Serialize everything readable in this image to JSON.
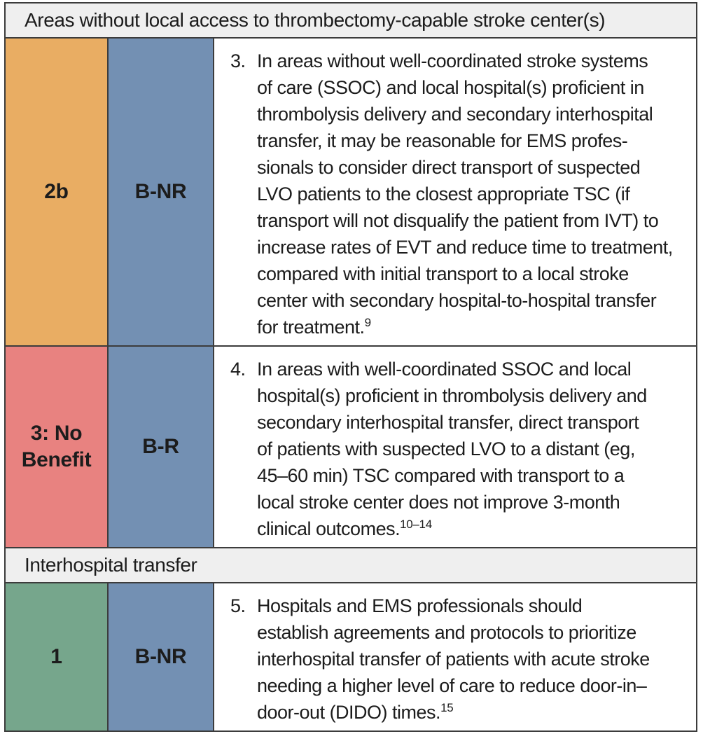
{
  "colors": {
    "cor-2b": "#e9ad63",
    "cor-no-benefit": "#e88280",
    "cor-1": "#76a68c",
    "loe": "#7390b3",
    "section-bg": "#efefef",
    "border": "#3c3c3c",
    "text": "#1c1c1c"
  },
  "sections": [
    {
      "title": "Areas without local access to thrombectomy-capable stroke center(s)"
    },
    {
      "title": "Interhospital transfer"
    }
  ],
  "rows": [
    {
      "cor": "2b",
      "loe": "B-NR",
      "rec_number": "3.",
      "rec_text": "In areas without well-coordinated stroke systems\nof care (SSOC) and local hospital(s) proficient in\nthrombolysis delivery and secondary interhospital\ntransfer, it may be reasonable for EMS profes-\nsionals to consider direct transport of suspected\nLVO patients to the closest appropriate TSC (if\ntransport will not disqualify the patient from IVT) to\nincrease rates of EVT and reduce time to treatment,\ncompared with initial transport to a local stroke\ncenter with secondary hospital-to-hospital transfer\nfor treatment.",
      "rec_reference": "9"
    },
    {
      "cor": "3: No\nBenefit",
      "loe": "B-R",
      "rec_number": "4.",
      "rec_text": "In areas with well-coordinated SSOC and local\nhospital(s) proficient in thrombolysis delivery and\nsecondary interhospital transfer, direct transport\nof patients with suspected LVO to a distant (eg,\n45–60 min) TSC compared with transport to a\nlocal stroke center does not improve 3-month\nclinical outcomes.",
      "rec_reference": "10–14"
    },
    {
      "cor": "1",
      "loe": "B-NR",
      "rec_number": "5.",
      "rec_text": "Hospitals and EMS professionals should\nestablish agreements and protocols to prioritize\ninterhospital transfer of patients with acute stroke\nneeding a higher level of care to reduce door-in–\ndoor-out (DIDO) times.",
      "rec_reference": "15"
    }
  ]
}
